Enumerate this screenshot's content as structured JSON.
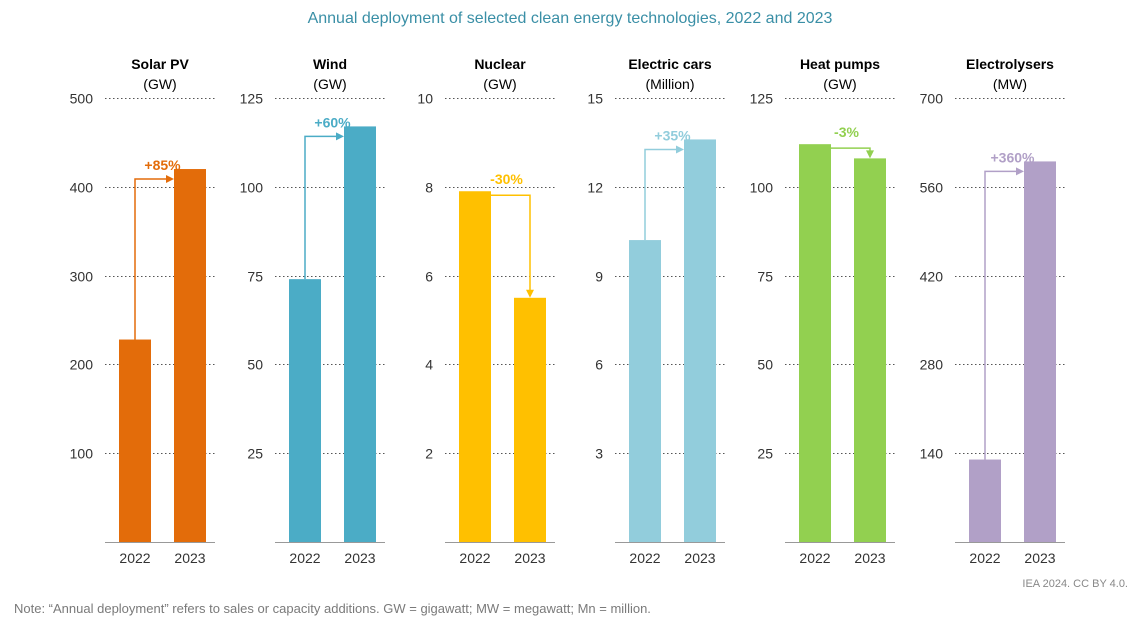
{
  "chart_data": {
    "type": "bar",
    "title": "Annual deployment of selected clean energy technologies, 2022 and 2023",
    "categories": [
      "2022",
      "2023"
    ],
    "panels": [
      {
        "title": "Solar PV",
        "unit": "(GW)",
        "color": "#e36c0a",
        "ylim": [
          0,
          500
        ],
        "ticks": [
          100,
          200,
          300,
          400,
          500
        ],
        "values": [
          228,
          420
        ],
        "change": "+85%"
      },
      {
        "title": "Wind",
        "unit": "(GW)",
        "color": "#4bacc6",
        "ylim": [
          0,
          125
        ],
        "ticks": [
          25,
          50,
          75,
          100,
          125
        ],
        "values": [
          74,
          117
        ],
        "change": "+60%"
      },
      {
        "title": "Nuclear",
        "unit": "(GW)",
        "color": "#ffc000",
        "ylim": [
          0,
          10
        ],
        "ticks": [
          2,
          4,
          6,
          8,
          10
        ],
        "values": [
          7.9,
          5.5
        ],
        "change": "-30%"
      },
      {
        "title": "Electric cars",
        "unit": "(Million)",
        "color": "#92cddc",
        "ylim": [
          0,
          15
        ],
        "ticks": [
          3,
          6,
          9,
          12,
          15
        ],
        "values": [
          10.2,
          13.6
        ],
        "change": "+35%"
      },
      {
        "title": "Heat pumps",
        "unit": "(GW)",
        "color": "#92d050",
        "ylim": [
          0,
          125
        ],
        "ticks": [
          25,
          50,
          75,
          100,
          125
        ],
        "values": [
          112,
          108
        ],
        "change": "-3%"
      },
      {
        "title": "Electrolysers",
        "unit": "(MW)",
        "color": "#b1a0c7",
        "ylim": [
          0,
          700
        ],
        "ticks": [
          140,
          280,
          420,
          560,
          700
        ],
        "values": [
          130,
          600
        ],
        "change": "+360%"
      }
    ]
  },
  "footer": {
    "credit": "IEA 2024. CC BY 4.0.",
    "note": "Note: “Annual deployment” refers to sales or capacity additions. GW = gigawatt; MW = megawatt; Mn = million."
  }
}
